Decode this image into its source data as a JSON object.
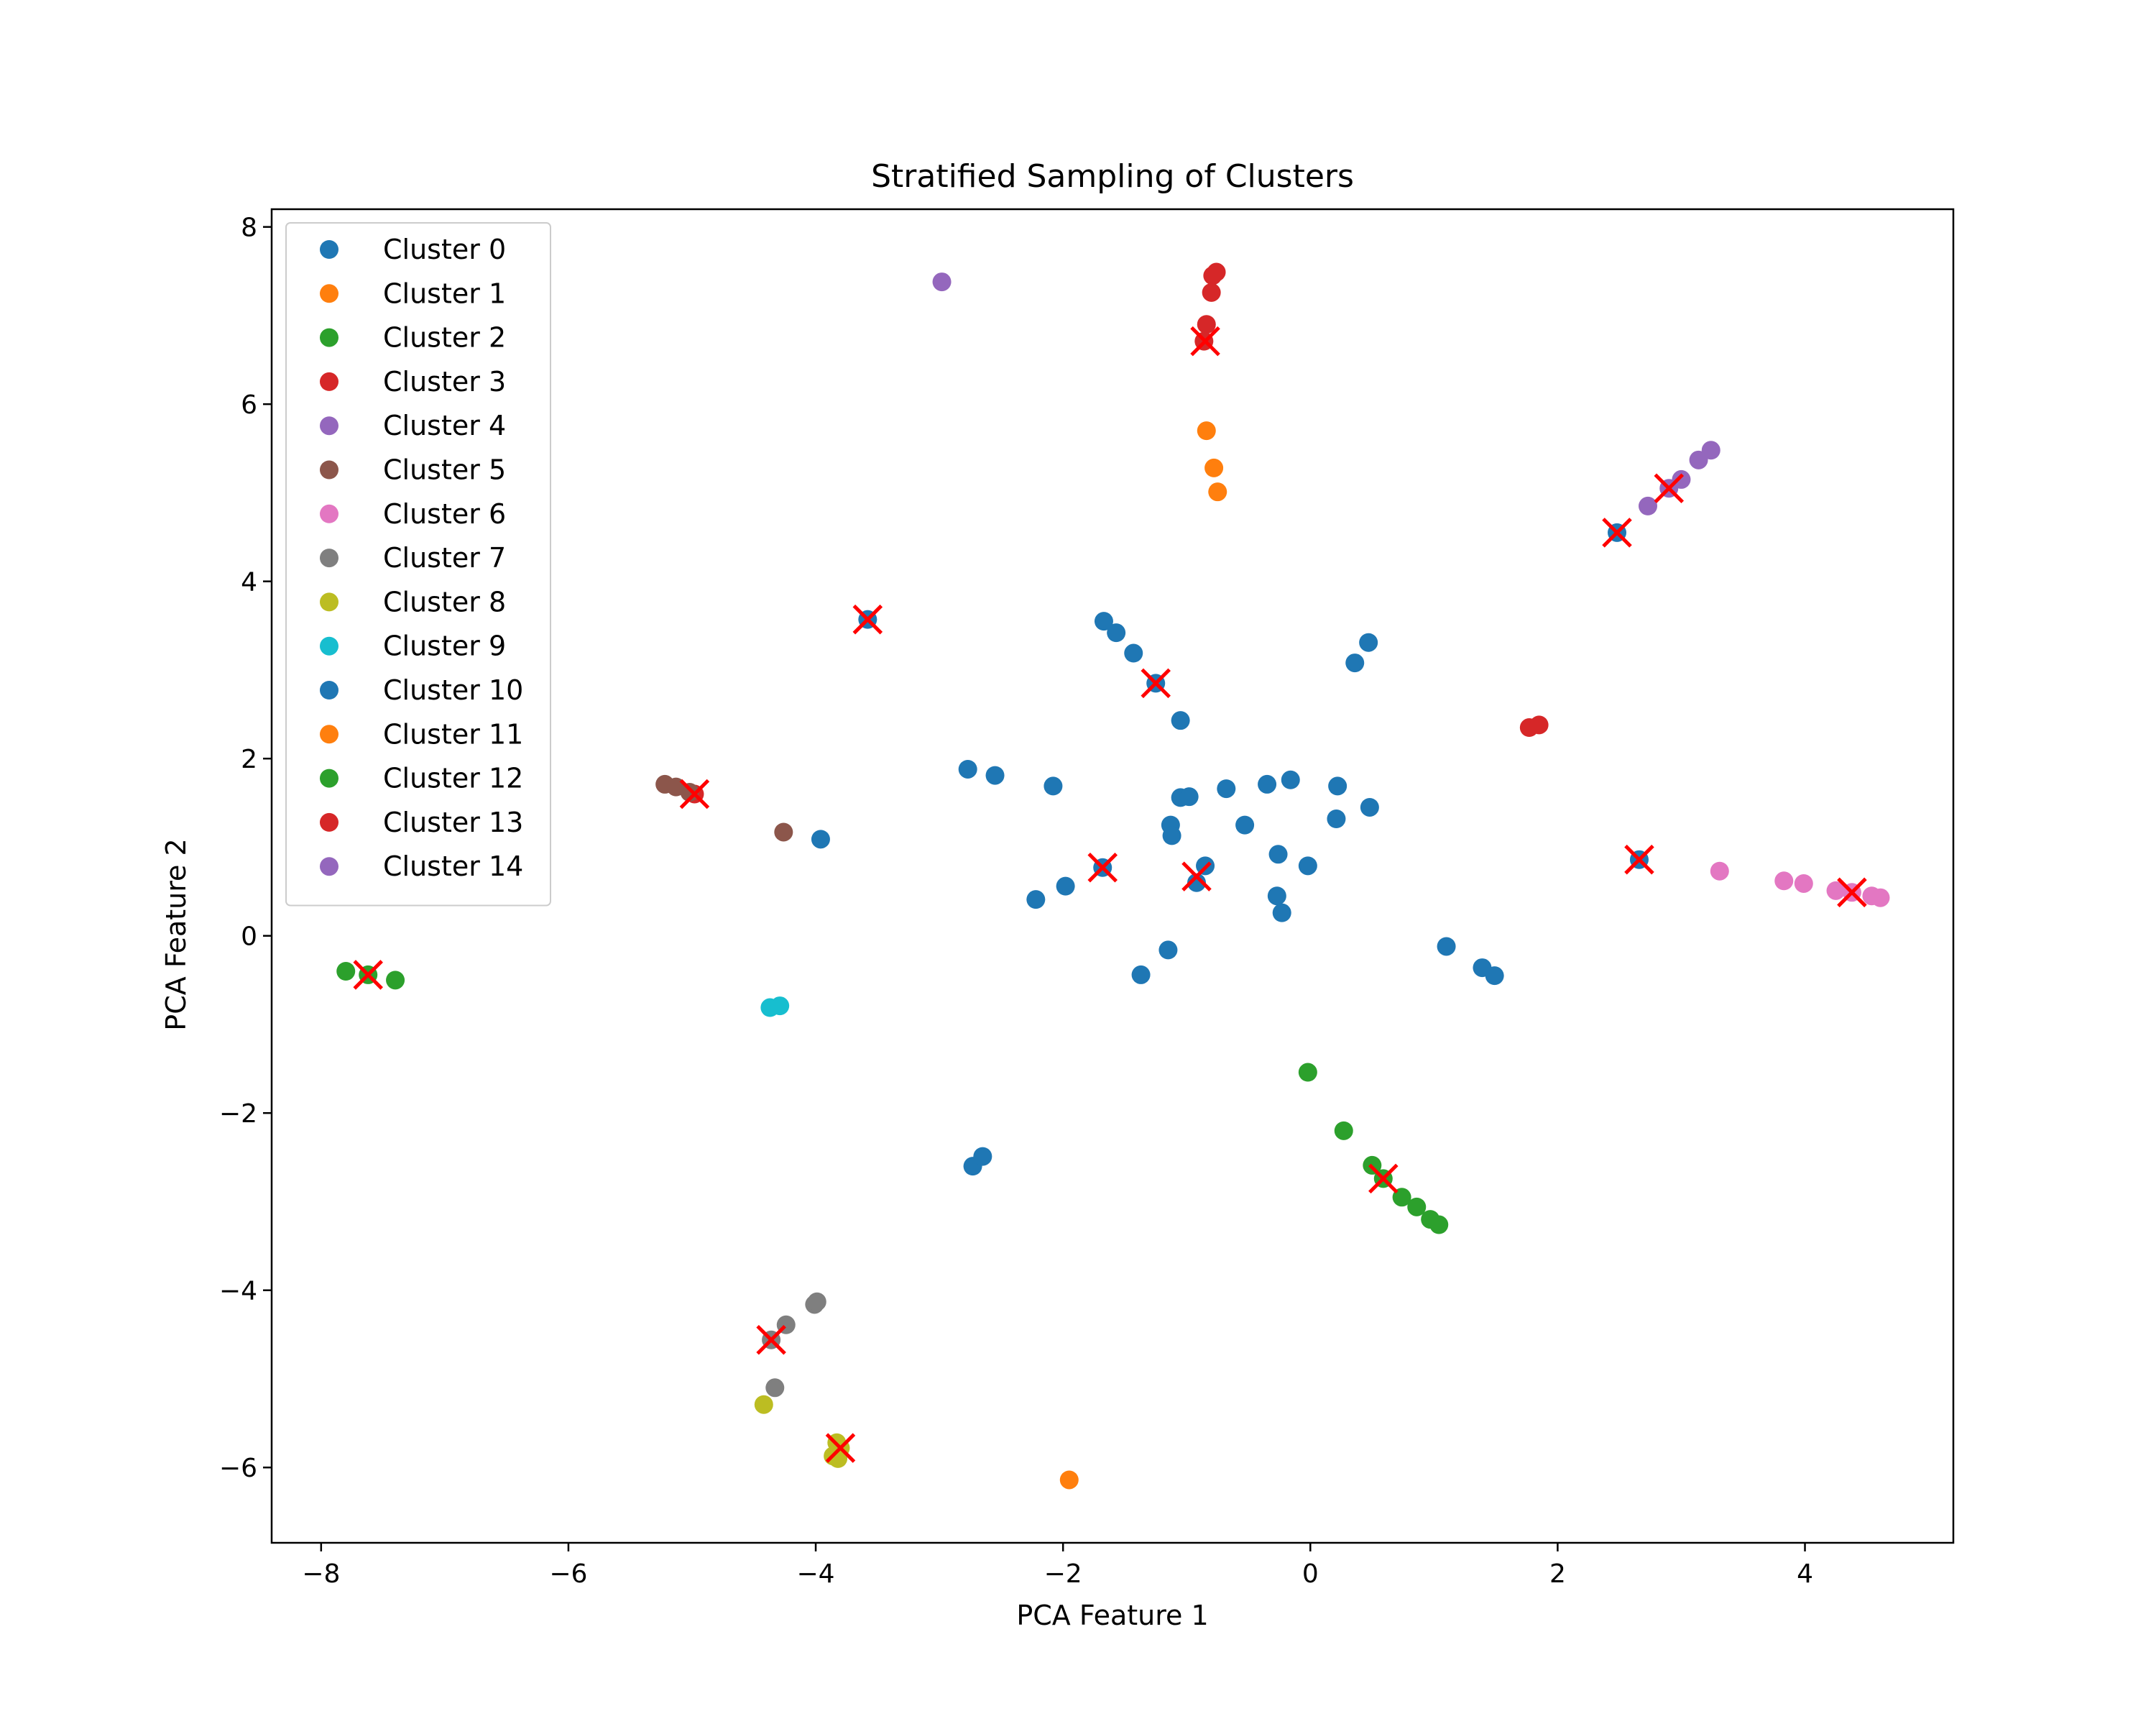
{
  "chart_data": {
    "type": "scatter",
    "title": "Stratified Sampling of Clusters",
    "xlabel": "PCA Feature 1",
    "ylabel": "PCA Feature 2",
    "xlim": [
      -8.4,
      5.2
    ],
    "ylim": [
      -6.85,
      8.2
    ],
    "xticks": [
      -8,
      -6,
      -4,
      -2,
      0,
      2,
      4
    ],
    "yticks": [
      -6,
      -4,
      -2,
      0,
      2,
      4,
      6,
      8
    ],
    "xtick_labels": [
      "−8",
      "−6",
      "−4",
      "−2",
      "0",
      "2",
      "4"
    ],
    "ytick_labels": [
      "−6",
      "−4",
      "−2",
      "0",
      "2",
      "4",
      "6",
      "8"
    ],
    "grid": false,
    "legend_position": "upper-left",
    "series": [
      {
        "name": "Cluster 0",
        "color": "#1f77b4",
        "points": [
          [
            -3.58,
            3.57
          ],
          [
            -1.67,
            3.55
          ],
          [
            -1.57,
            3.42
          ],
          [
            -1.43,
            3.19
          ],
          [
            -1.25,
            2.85
          ],
          [
            -1.05,
            2.43
          ],
          [
            -2.77,
            1.88
          ],
          [
            -2.55,
            1.81
          ],
          [
            -2.08,
            1.69
          ],
          [
            -1.05,
            1.56
          ],
          [
            -0.98,
            1.57
          ],
          [
            -0.68,
            1.66
          ],
          [
            -1.13,
            1.25
          ],
          [
            -1.12,
            1.13
          ],
          [
            -0.53,
            1.25
          ],
          [
            -0.35,
            1.71
          ],
          [
            -0.16,
            1.76
          ],
          [
            0.22,
            1.69
          ],
          [
            0.48,
            1.45
          ],
          [
            0.21,
            1.32
          ],
          [
            0.36,
            3.08
          ],
          [
            0.47,
            3.31
          ],
          [
            -0.26,
            0.92
          ],
          [
            -0.02,
            0.79
          ],
          [
            -1.68,
            0.77
          ],
          [
            -0.85,
            0.79
          ],
          [
            -0.92,
            0.6
          ],
          [
            -0.27,
            0.45
          ],
          [
            -0.23,
            0.26
          ],
          [
            -1.98,
            0.56
          ],
          [
            -2.22,
            0.41
          ],
          [
            -1.15,
            -0.16
          ],
          [
            -1.37,
            -0.44
          ],
          [
            1.1,
            -0.12
          ],
          [
            1.39,
            -0.36
          ],
          [
            1.49,
            -0.45
          ],
          [
            -2.73,
            -2.6
          ],
          [
            -2.65,
            -2.49
          ],
          [
            -3.96,
            1.09
          ],
          [
            2.48,
            4.55
          ],
          [
            2.66,
            0.86
          ]
        ]
      },
      {
        "name": "Cluster 1",
        "color": "#ff7f0e",
        "points": [
          [
            -0.84,
            5.7
          ],
          [
            -0.78,
            5.28
          ],
          [
            -0.75,
            5.01
          ],
          [
            -1.95,
            -6.14
          ]
        ]
      },
      {
        "name": "Cluster 2",
        "color": "#2ca02c",
        "points": [
          [
            -7.8,
            -0.4
          ],
          [
            -7.62,
            -0.44
          ],
          [
            -7.4,
            -0.5
          ],
          [
            -0.02,
            -1.54
          ],
          [
            0.27,
            -2.2
          ],
          [
            0.5,
            -2.59
          ],
          [
            0.59,
            -2.74
          ],
          [
            0.74,
            -2.95
          ],
          [
            0.86,
            -3.06
          ],
          [
            0.97,
            -3.2
          ],
          [
            1.04,
            -3.26
          ]
        ]
      },
      {
        "name": "Cluster 3",
        "color": "#d62728",
        "points": [
          [
            -0.76,
            7.49
          ],
          [
            -0.79,
            7.45
          ],
          [
            -0.8,
            7.26
          ],
          [
            -0.84,
            6.9
          ],
          [
            -0.86,
            6.71
          ],
          [
            -4.98,
            1.6
          ],
          [
            1.77,
            2.35
          ],
          [
            1.85,
            2.38
          ]
        ]
      },
      {
        "name": "Cluster 4",
        "color": "#9467bd",
        "points": [
          [
            -2.98,
            7.38
          ],
          [
            2.73,
            4.85
          ],
          [
            2.9,
            5.05
          ],
          [
            3.0,
            5.15
          ],
          [
            3.14,
            5.37
          ],
          [
            3.24,
            5.48
          ]
        ]
      },
      {
        "name": "Cluster 5",
        "color": "#8c564b",
        "points": [
          [
            -5.22,
            1.71
          ],
          [
            -5.13,
            1.68
          ],
          [
            -5.02,
            1.62
          ],
          [
            -4.26,
            1.17
          ]
        ]
      },
      {
        "name": "Cluster 6",
        "color": "#e377c2",
        "points": [
          [
            3.31,
            0.73
          ],
          [
            3.83,
            0.62
          ],
          [
            3.99,
            0.59
          ],
          [
            4.25,
            0.51
          ],
          [
            4.38,
            0.49
          ],
          [
            4.54,
            0.45
          ],
          [
            4.61,
            0.43
          ]
        ]
      },
      {
        "name": "Cluster 7",
        "color": "#7f7f7f",
        "points": [
          [
            -4.01,
            -4.16
          ],
          [
            -3.99,
            -4.13
          ],
          [
            -4.24,
            -4.39
          ],
          [
            -4.36,
            -4.56
          ],
          [
            -4.33,
            -5.1
          ]
        ]
      },
      {
        "name": "Cluster 8",
        "color": "#bcbd22",
        "points": [
          [
            -4.42,
            -5.29
          ],
          [
            -3.83,
            -5.72
          ],
          [
            -3.8,
            -5.78
          ],
          [
            -3.86,
            -5.87
          ],
          [
            -3.82,
            -5.9
          ]
        ]
      },
      {
        "name": "Cluster 9",
        "color": "#17becf",
        "points": [
          [
            -4.37,
            -0.81
          ],
          [
            -4.29,
            -0.79
          ]
        ]
      },
      {
        "name": "Cluster 10",
        "color": "#1f77b4",
        "points": []
      },
      {
        "name": "Cluster 11",
        "color": "#ff7f0e",
        "points": []
      },
      {
        "name": "Cluster 12",
        "color": "#2ca02c",
        "points": []
      },
      {
        "name": "Cluster 13",
        "color": "#d62728",
        "points": []
      },
      {
        "name": "Cluster 14",
        "color": "#9467bd",
        "points": []
      }
    ],
    "sampled_markers": {
      "marker": "x",
      "color": "#ff0000",
      "points": [
        [
          -0.85,
          6.71
        ],
        [
          2.9,
          5.05
        ],
        [
          2.48,
          4.55
        ],
        [
          -3.58,
          3.57
        ],
        [
          -1.25,
          2.85
        ],
        [
          -4.98,
          1.6
        ],
        [
          2.66,
          0.86
        ],
        [
          -1.68,
          0.77
        ],
        [
          -0.92,
          0.67
        ],
        [
          4.38,
          0.49
        ],
        [
          -7.62,
          -0.44
        ],
        [
          0.59,
          -2.74
        ],
        [
          -4.36,
          -4.56
        ],
        [
          -3.8,
          -5.78
        ]
      ]
    }
  }
}
